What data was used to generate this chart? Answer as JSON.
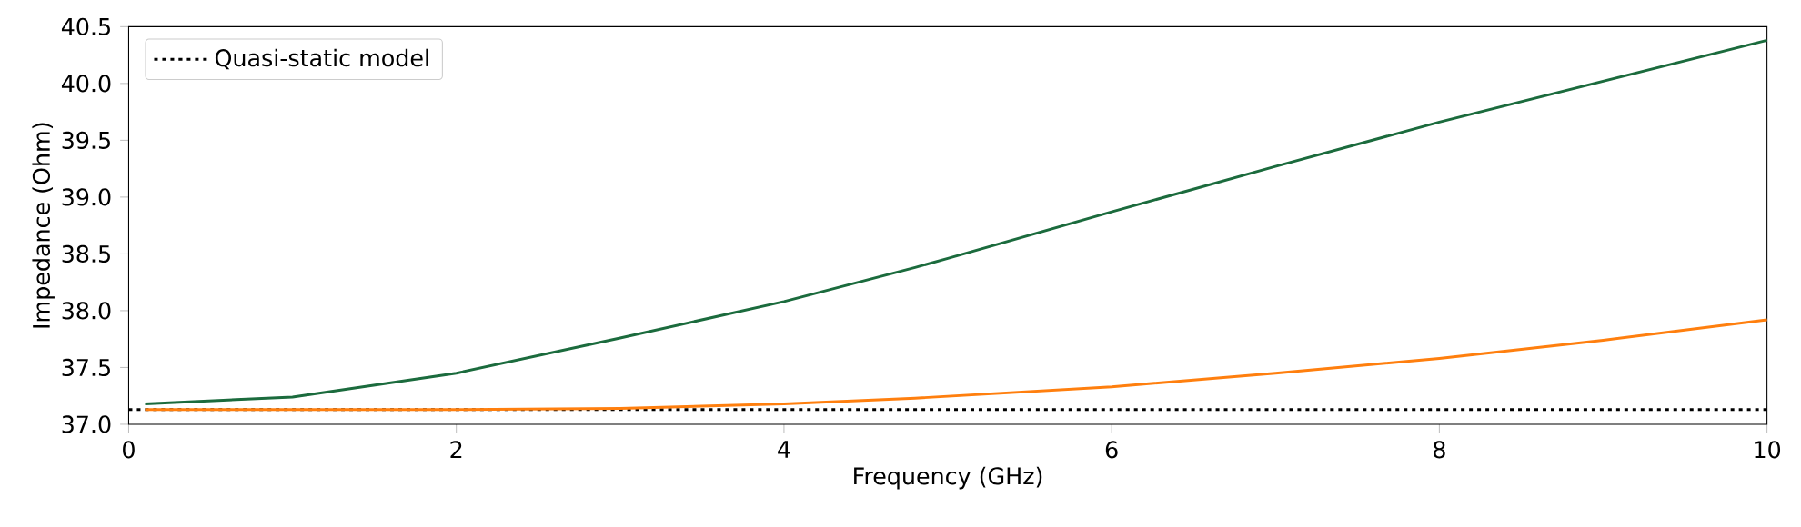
{
  "chart_data": {
    "type": "line",
    "xlabel": "Frequency (GHz)",
    "ylabel": "Impedance (Ohm)",
    "xlim": [
      0,
      10
    ],
    "ylim": [
      37.0,
      40.5
    ],
    "xticks": [
      0,
      2,
      4,
      6,
      8,
      10
    ],
    "yticks": [
      {
        "value": 37.0,
        "label": "37.0"
      },
      {
        "value": 37.5,
        "label": "37.5"
      },
      {
        "value": 38.0,
        "label": "38.0"
      },
      {
        "value": 38.5,
        "label": "38.5"
      },
      {
        "value": 39.0,
        "label": "39.0"
      },
      {
        "value": 39.5,
        "label": "39.5"
      },
      {
        "value": 40.0,
        "label": "40.0"
      },
      {
        "value": 40.5,
        "label": "40.5"
      }
    ],
    "legend": "top left",
    "grid": false,
    "series": [
      {
        "color": "#1b6b3d",
        "line_style": "solid",
        "x": [
          0.1,
          1,
          2,
          3,
          4,
          4.8,
          5,
          6,
          7,
          8,
          9,
          10
        ],
        "values": [
          37.18,
          37.24,
          37.45,
          37.76,
          38.08,
          38.38,
          38.46,
          38.87,
          39.27,
          39.66,
          40.02,
          40.38
        ]
      },
      {
        "name": "Quasi-static model",
        "color": "#000000",
        "line_style": "dotted",
        "x": [
          0,
          10
        ],
        "values": [
          37.13,
          37.13
        ]
      },
      {
        "color": "#ff7f0e",
        "line_style": "solid",
        "x": [
          0.1,
          2,
          3,
          4,
          4.8,
          6,
          7,
          8,
          9,
          10
        ],
        "values": [
          37.13,
          37.13,
          37.14,
          37.18,
          37.23,
          37.33,
          37.45,
          37.58,
          37.74,
          37.92
        ]
      }
    ]
  }
}
